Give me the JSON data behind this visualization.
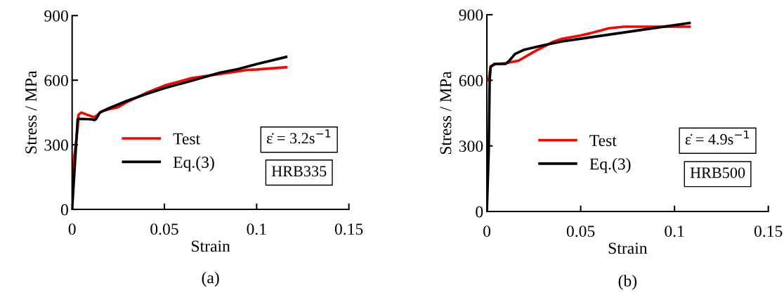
{
  "chart_data": [
    {
      "type": "line",
      "xlabel": "Strain",
      "ylabel": "Stress / MPa",
      "xlim": [
        0,
        0.15
      ],
      "ylim": [
        0,
        900
      ],
      "xticks": [
        0,
        0.05,
        0.1,
        0.15
      ],
      "yticks": [
        0,
        300,
        600,
        900
      ],
      "grid": false,
      "legend": "bottom",
      "marker": "none",
      "line_style": "solid",
      "annotations": [
        "ε̇ = 3.2s$^{−1}$",
        "HRB335",
        "(a)"
      ],
      "series": [
        {
          "name": "Test",
          "color": "#ff0000",
          "x": [
            0,
            0.0005,
            0.002,
            0.003,
            0.0035,
            0.005,
            0.008,
            0.012,
            0.014,
            0.016,
            0.02,
            0.025,
            0.03,
            0.04,
            0.05,
            0.065,
            0.085,
            0.095,
            0.1,
            0.116
          ],
          "values": [
            0,
            200,
            300,
            380,
            440,
            450,
            440,
            428,
            440,
            455,
            465,
            475,
            500,
            540,
            575,
            610,
            635,
            648,
            650,
            660
          ]
        },
        {
          "name": "Eq.(3)",
          "color": "#000000",
          "x": [
            0,
            0.003,
            0.006,
            0.011,
            0.012,
            0.013,
            0.015,
            0.02,
            0.03,
            0.04,
            0.05,
            0.065,
            0.08,
            0.09,
            0.1,
            0.116
          ],
          "values": [
            0,
            420,
            420,
            418,
            415,
            420,
            450,
            470,
            505,
            535,
            563,
            598,
            635,
            652,
            675,
            708
          ]
        }
      ]
    },
    {
      "type": "line",
      "xlabel": "Strain",
      "ylabel": "Stress / MPa",
      "xlim": [
        0,
        0.15
      ],
      "ylim": [
        0,
        900
      ],
      "xticks": [
        0,
        0.05,
        0.1,
        0.15
      ],
      "yticks": [
        0,
        300,
        600,
        900
      ],
      "grid": false,
      "legend": "bottom",
      "marker": "none",
      "line_style": "solid",
      "annotations": [
        "ε̇ = 4.9s$^{−1}$",
        "HRB500",
        "(b)"
      ],
      "series": [
        {
          "name": "Test",
          "color": "#ff0000",
          "x": [
            0.001,
            0.002,
            0.005,
            0.01,
            0.017,
            0.025,
            0.035,
            0.04,
            0.05,
            0.055,
            0.065,
            0.073,
            0.09,
            0.108
          ],
          "values": [
            600,
            665,
            675,
            678,
            690,
            730,
            775,
            790,
            805,
            815,
            838,
            845,
            845,
            845
          ]
        },
        {
          "name": "Eq.(3)",
          "color": "#000000",
          "x": [
            0,
            0.001,
            0.0015,
            0.002,
            0.004,
            0.01,
            0.012,
            0.015,
            0.02,
            0.03,
            0.04,
            0.05,
            0.07,
            0.09,
            0.108
          ],
          "values": [
            0,
            280,
            600,
            660,
            675,
            675,
            690,
            720,
            740,
            760,
            778,
            790,
            815,
            840,
            862
          ]
        }
      ]
    }
  ]
}
